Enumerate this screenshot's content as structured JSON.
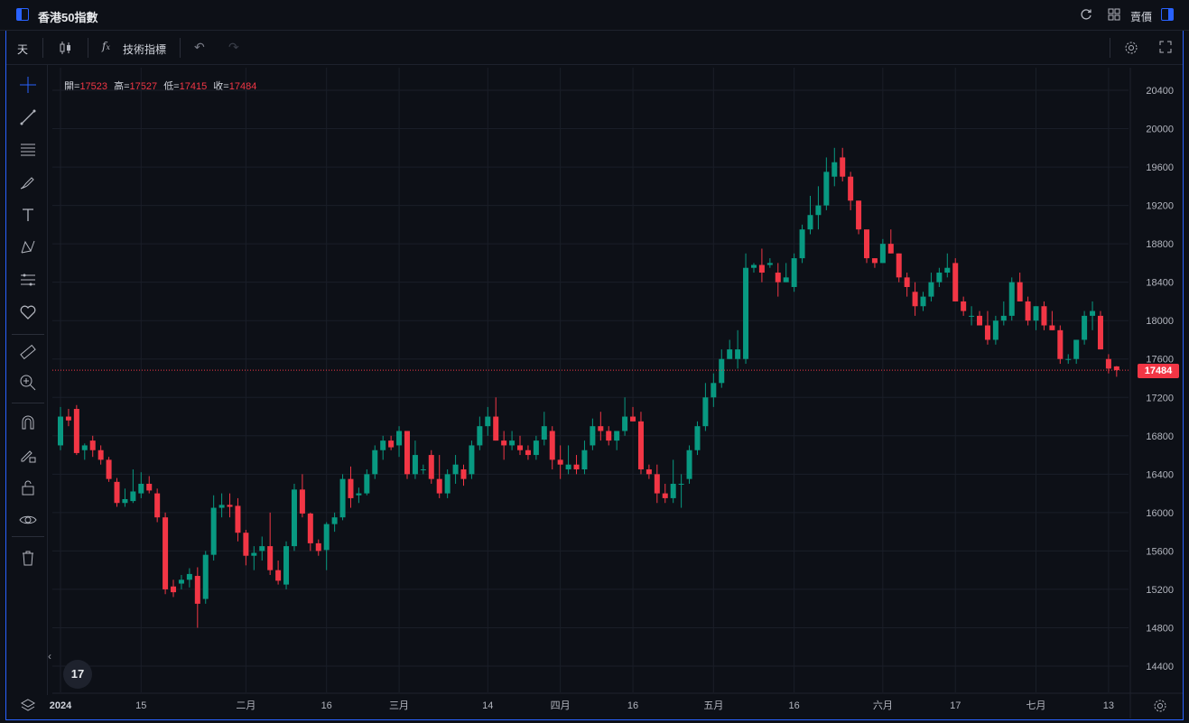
{
  "window": {
    "title": "香港50指數",
    "sell_label": "賣價"
  },
  "toolbar": {
    "interval": "天",
    "indicators_label": "技術指標"
  },
  "ohlc": {
    "open_label": "開=",
    "open": "17523",
    "high_label": "高=",
    "high": "17527",
    "low_label": "低=",
    "low": "17415",
    "close_label": "收=",
    "close": "17484"
  },
  "last_price": "17484",
  "colors": {
    "up": "#089981",
    "down": "#f23645",
    "accent": "#2962ff",
    "background": "#0d1017"
  },
  "sidebar_icons": [
    "crosshair-icon",
    "trendline-icon",
    "parallel-lines-icon",
    "brush-icon",
    "text-icon",
    "pattern-icon",
    "prediction-icon",
    "heart-icon",
    "ruler-icon",
    "zoom-in-icon",
    "magnet-icon",
    "lock-drawing-icon",
    "unlock-icon",
    "eye-icon",
    "trash-icon"
  ],
  "chart_data": {
    "type": "candlestick",
    "y_ticks": [
      "20400",
      "20000",
      "19600",
      "19200",
      "18800",
      "18400",
      "18000",
      "17600",
      "17200",
      "16800",
      "16400",
      "16000",
      "15600",
      "15200",
      "14800",
      "14400"
    ],
    "ylim": [
      14200,
      20650
    ],
    "x_labels": [
      {
        "label": "2024",
        "bold": true,
        "index": 0
      },
      {
        "label": "15",
        "index": 10
      },
      {
        "label": "二月",
        "index": 23
      },
      {
        "label": "16",
        "index": 33
      },
      {
        "label": "三月",
        "index": 42
      },
      {
        "label": "14",
        "index": 53
      },
      {
        "label": "四月",
        "index": 62
      },
      {
        "label": "16",
        "index": 71
      },
      {
        "label": "五月",
        "index": 81
      },
      {
        "label": "16",
        "index": 91
      },
      {
        "label": "六月",
        "index": 102
      },
      {
        "label": "17",
        "index": 111
      },
      {
        "label": "七月",
        "index": 121
      },
      {
        "label": "13",
        "index": 130
      }
    ],
    "candles": [
      [
        16700,
        17100,
        16650,
        17000
      ],
      [
        17000,
        17080,
        16900,
        16960
      ],
      [
        17080,
        17120,
        16600,
        16620
      ],
      [
        16650,
        16720,
        16550,
        16700
      ],
      [
        16750,
        16800,
        16580,
        16650
      ],
      [
        16650,
        16700,
        16500,
        16550
      ],
      [
        16550,
        16580,
        16320,
        16350
      ],
      [
        16320,
        16360,
        16060,
        16100
      ],
      [
        16100,
        16250,
        16060,
        16140
      ],
      [
        16120,
        16450,
        16100,
        16220
      ],
      [
        16200,
        16420,
        16150,
        16300
      ],
      [
        16300,
        16380,
        16200,
        16230
      ],
      [
        16200,
        16250,
        15900,
        15950
      ],
      [
        15950,
        16000,
        15150,
        15200
      ],
      [
        15230,
        15300,
        15120,
        15170
      ],
      [
        15260,
        15350,
        15200,
        15300
      ],
      [
        15300,
        15420,
        15220,
        15360
      ],
      [
        15340,
        15430,
        14800,
        15050
      ],
      [
        15100,
        15600,
        15050,
        15560
      ],
      [
        15560,
        16180,
        15500,
        16050
      ],
      [
        16050,
        16200,
        15950,
        16080
      ],
      [
        16080,
        16200,
        15950,
        16060
      ],
      [
        16070,
        16150,
        15700,
        15790
      ],
      [
        15790,
        15820,
        15450,
        15550
      ],
      [
        15550,
        15650,
        15400,
        15580
      ],
      [
        15600,
        15750,
        15500,
        15650
      ],
      [
        15650,
        16000,
        15350,
        15400
      ],
      [
        15400,
        15500,
        15250,
        15290
      ],
      [
        15250,
        15700,
        15200,
        15650
      ],
      [
        15650,
        16300,
        15600,
        16240
      ],
      [
        16240,
        16400,
        15950,
        15990
      ],
      [
        15990,
        16000,
        15600,
        15680
      ],
      [
        15680,
        15720,
        15550,
        15600
      ],
      [
        15610,
        15900,
        15400,
        15880
      ],
      [
        15880,
        16000,
        15800,
        15950
      ],
      [
        15950,
        16400,
        15920,
        16350
      ],
      [
        16350,
        16480,
        16050,
        16150
      ],
      [
        16180,
        16260,
        16100,
        16200
      ],
      [
        16200,
        16450,
        16180,
        16400
      ],
      [
        16400,
        16700,
        16350,
        16650
      ],
      [
        16650,
        16800,
        16550,
        16750
      ],
      [
        16750,
        16800,
        16650,
        16680
      ],
      [
        16700,
        16900,
        16580,
        16850
      ],
      [
        16850,
        16850,
        16350,
        16400
      ],
      [
        16400,
        16750,
        16350,
        16600
      ],
      [
        16450,
        16500,
        16400,
        16450
      ],
      [
        16600,
        16650,
        16300,
        16350
      ],
      [
        16350,
        16600,
        16150,
        16200
      ],
      [
        16200,
        16450,
        16150,
        16400
      ],
      [
        16400,
        16600,
        16300,
        16500
      ],
      [
        16450,
        16500,
        16280,
        16350
      ],
      [
        16400,
        16750,
        16350,
        16700
      ],
      [
        16700,
        17000,
        16650,
        16900
      ],
      [
        16900,
        17100,
        16800,
        17000
      ],
      [
        17000,
        17200,
        16750,
        16750
      ],
      [
        16750,
        16850,
        16550,
        16700
      ],
      [
        16700,
        16850,
        16650,
        16750
      ],
      [
        16700,
        16800,
        16600,
        16650
      ],
      [
        16650,
        16700,
        16550,
        16600
      ],
      [
        16600,
        16800,
        16550,
        16750
      ],
      [
        16760,
        17050,
        16700,
        16900
      ],
      [
        16850,
        16900,
        16450,
        16550
      ],
      [
        16550,
        16700,
        16350,
        16500
      ],
      [
        16450,
        16700,
        16400,
        16500
      ],
      [
        16500,
        16600,
        16400,
        16450
      ],
      [
        16450,
        16750,
        16400,
        16650
      ],
      [
        16700,
        16980,
        16650,
        16900
      ],
      [
        16900,
        17050,
        16750,
        16850
      ],
      [
        16850,
        16900,
        16700,
        16750
      ],
      [
        16750,
        16850,
        16650,
        16850
      ],
      [
        16850,
        17200,
        16800,
        17000
      ],
      [
        17000,
        17100,
        16950,
        16950
      ],
      [
        16950,
        17050,
        16400,
        16450
      ],
      [
        16450,
        16500,
        16350,
        16400
      ],
      [
        16400,
        16500,
        16100,
        16200
      ],
      [
        16200,
        16300,
        16100,
        16150
      ],
      [
        16150,
        16550,
        16100,
        16300
      ],
      [
        16300,
        16400,
        16050,
        16300
      ],
      [
        16350,
        16700,
        16300,
        16650
      ],
      [
        16650,
        16950,
        16600,
        16900
      ],
      [
        16900,
        17350,
        16850,
        17200
      ],
      [
        17200,
        17450,
        17100,
        17350
      ],
      [
        17350,
        17700,
        17300,
        17600
      ],
      [
        17600,
        17800,
        17600,
        17700
      ],
      [
        17600,
        17900,
        17500,
        17700
      ],
      [
        17600,
        18700,
        17550,
        18550
      ],
      [
        18550,
        18600,
        18500,
        18580
      ],
      [
        18580,
        18750,
        18400,
        18500
      ],
      [
        18580,
        18650,
        18550,
        18600
      ],
      [
        18500,
        18600,
        18250,
        18400
      ],
      [
        18400,
        18600,
        18400,
        18450
      ],
      [
        18350,
        18700,
        18300,
        18650
      ],
      [
        18650,
        19000,
        18600,
        18950
      ],
      [
        18950,
        19300,
        18900,
        19100
      ],
      [
        19100,
        19400,
        18950,
        19200
      ],
      [
        19200,
        19700,
        19150,
        19550
      ],
      [
        19500,
        19800,
        19400,
        19650
      ],
      [
        19700,
        19800,
        19450,
        19500
      ],
      [
        19500,
        19550,
        19150,
        19250
      ],
      [
        19250,
        19250,
        18900,
        18950
      ],
      [
        18950,
        18900,
        18600,
        18650
      ],
      [
        18650,
        18650,
        18550,
        18600
      ],
      [
        18600,
        18850,
        18600,
        18800
      ],
      [
        18800,
        18950,
        18700,
        18700
      ],
      [
        18700,
        18700,
        18400,
        18450
      ],
      [
        18450,
        18500,
        18250,
        18350
      ],
      [
        18300,
        18400,
        18050,
        18150
      ],
      [
        18150,
        18300,
        18100,
        18250
      ],
      [
        18250,
        18500,
        18200,
        18400
      ],
      [
        18400,
        18550,
        18350,
        18500
      ],
      [
        18500,
        18700,
        18450,
        18550
      ],
      [
        18600,
        18650,
        18200,
        18200
      ],
      [
        18200,
        18250,
        18050,
        18100
      ],
      [
        18050,
        18150,
        17950,
        18050
      ],
      [
        18050,
        18100,
        17950,
        17950
      ],
      [
        17950,
        18100,
        17750,
        17800
      ],
      [
        17800,
        18050,
        17750,
        18000
      ],
      [
        18000,
        18200,
        17950,
        18050
      ],
      [
        18050,
        18450,
        18000,
        18400
      ],
      [
        18400,
        18500,
        18200,
        18200
      ],
      [
        18200,
        18250,
        17950,
        18000
      ],
      [
        18000,
        18150,
        17900,
        18150
      ],
      [
        18150,
        18200,
        17900,
        17950
      ],
      [
        17950,
        18100,
        17900,
        17900
      ],
      [
        17900,
        17950,
        17550,
        17600
      ],
      [
        17600,
        17650,
        17550,
        17600
      ],
      [
        17600,
        17800,
        17550,
        17800
      ],
      [
        17800,
        18100,
        17750,
        18050
      ],
      [
        18050,
        18200,
        17900,
        18100
      ],
      [
        18050,
        18100,
        17700,
        17700
      ],
      [
        17600,
        17650,
        17450,
        17500
      ],
      [
        17523,
        17527,
        17415,
        17484
      ]
    ]
  }
}
